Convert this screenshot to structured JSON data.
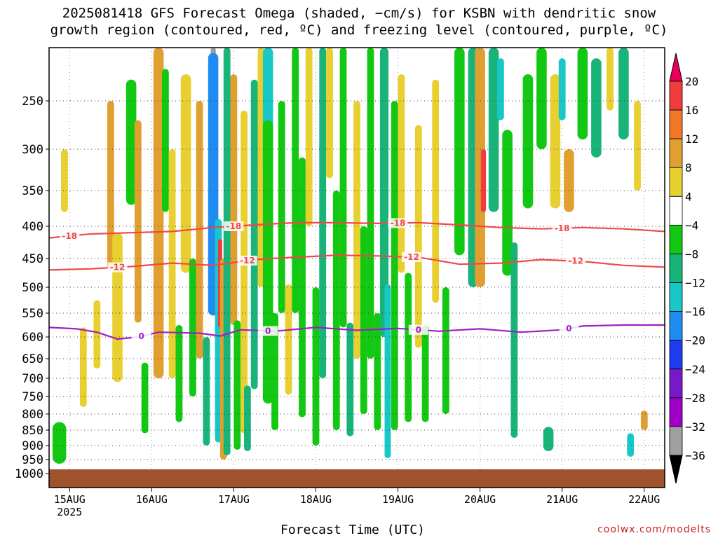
{
  "title_line1": "2025081418 GFS Forecast Omega (shaded, −cm/s) for KSBN with dendritic snow",
  "title_line2": "growth region (contoured, red, ºC) and freezing level (contoured, purple, ºC)",
  "credit": "coolwx.com/modelts",
  "chart_data": {
    "type": "heatmap",
    "xlabel": "Forecast Time (UTC)",
    "ylabel": "",
    "x_ticks": [
      {
        "label": "15AUG",
        "sub": "2025",
        "hour": 6
      },
      {
        "label": "16AUG",
        "sub": "",
        "hour": 30
      },
      {
        "label": "17AUG",
        "sub": "",
        "hour": 54
      },
      {
        "label": "18AUG",
        "sub": "",
        "hour": 78
      },
      {
        "label": "19AUG",
        "sub": "",
        "hour": 102
      },
      {
        "label": "20AUG",
        "sub": "",
        "hour": 126
      },
      {
        "label": "21AUG",
        "sub": "",
        "hour": 150
      },
      {
        "label": "22AUG",
        "sub": "",
        "hour": 174
      }
    ],
    "x_range_hours": [
      0,
      180
    ],
    "y_ticks": [
      250,
      300,
      350,
      400,
      450,
      500,
      550,
      600,
      650,
      700,
      750,
      800,
      850,
      900,
      950,
      1000
    ],
    "y_range": [
      200,
      1010
    ],
    "y_scale": "pressure",
    "grid": true,
    "colorbar": {
      "levels": [
        20,
        16,
        12,
        8,
        4,
        -4,
        -8,
        -12,
        -16,
        -20,
        -24,
        -28,
        -32,
        -36
      ],
      "colors": [
        "#e8005c",
        "#f03c3c",
        "#f07828",
        "#e0a030",
        "#e8d030",
        "#ffffff",
        "#12c812",
        "#18b47a",
        "#18c8c8",
        "#1e8cf0",
        "#1e3cf0",
        "#7818c8",
        "#a000c8",
        "#a0a0a0",
        "#000000"
      ],
      "labels": [
        "20",
        "16",
        "12",
        "8",
        "4",
        "−4",
        "−8",
        "−12",
        "−16",
        "−20",
        "−24",
        "−28",
        "−32",
        "−36"
      ]
    },
    "contours": [
      {
        "label": "-18",
        "color": "#f04848",
        "points": [
          [
            0,
            418
          ],
          [
            12,
            412
          ],
          [
            24,
            410
          ],
          [
            36,
            408
          ],
          [
            48,
            402
          ],
          [
            60,
            398
          ],
          [
            72,
            395
          ],
          [
            84,
            395
          ],
          [
            96,
            396
          ],
          [
            108,
            395
          ],
          [
            120,
            398
          ],
          [
            132,
            402
          ],
          [
            144,
            404
          ],
          [
            156,
            402
          ],
          [
            168,
            404
          ],
          [
            180,
            408
          ]
        ],
        "label_hours": [
          6,
          54,
          102,
          150
        ]
      },
      {
        "label": "-12",
        "color": "#f04848",
        "points": [
          [
            0,
            470
          ],
          [
            12,
            468
          ],
          [
            24,
            464
          ],
          [
            36,
            458
          ],
          [
            48,
            462
          ],
          [
            60,
            452
          ],
          [
            72,
            448
          ],
          [
            84,
            445
          ],
          [
            96,
            446
          ],
          [
            108,
            448
          ],
          [
            120,
            460
          ],
          [
            132,
            458
          ],
          [
            144,
            452
          ],
          [
            156,
            455
          ],
          [
            168,
            462
          ],
          [
            180,
            465
          ]
        ],
        "label_hours": [
          20,
          58,
          106,
          154
        ]
      },
      {
        "label": "0",
        "color": "#a020c0",
        "points": [
          [
            0,
            580
          ],
          [
            8,
            583
          ],
          [
            14,
            590
          ],
          [
            20,
            605
          ],
          [
            26,
            600
          ],
          [
            32,
            590
          ],
          [
            44,
            592
          ],
          [
            50,
            598
          ],
          [
            56,
            585
          ],
          [
            66,
            588
          ],
          [
            78,
            580
          ],
          [
            90,
            586
          ],
          [
            102,
            582
          ],
          [
            114,
            588
          ],
          [
            126,
            583
          ],
          [
            138,
            590
          ],
          [
            150,
            585
          ],
          [
            156,
            577
          ],
          [
            168,
            575
          ],
          [
            180,
            575
          ]
        ],
        "label_hours": [
          27,
          64,
          108,
          152
        ]
      }
    ],
    "omega_cells": [
      {
        "hour": 3,
        "p": 895,
        "v": -14,
        "w": 3,
        "h": 80
      },
      {
        "hour": 3,
        "p": 895,
        "v": -8,
        "w": 4,
        "h": 140
      },
      {
        "hour": 4.5,
        "p": 340,
        "v": 6,
        "w": 2,
        "h": 80
      },
      {
        "hour": 10,
        "p": 680,
        "v": 5,
        "w": 2,
        "h": 200
      },
      {
        "hour": 14,
        "p": 600,
        "v": 5,
        "w": 2,
        "h": 150
      },
      {
        "hour": 18,
        "p": 360,
        "v": 8,
        "w": 2,
        "h": 220
      },
      {
        "hour": 20,
        "p": 560,
        "v": 5,
        "w": 3,
        "h": 300
      },
      {
        "hour": 24,
        "p": 300,
        "v": -8,
        "w": 3,
        "h": 140
      },
      {
        "hour": 26,
        "p": 420,
        "v": 10,
        "w": 2,
        "h": 300
      },
      {
        "hour": 28,
        "p": 760,
        "v": -8,
        "w": 2,
        "h": 200
      },
      {
        "hour": 32,
        "p": 450,
        "v": 8,
        "w": 3,
        "h": 500
      },
      {
        "hour": 34,
        "p": 300,
        "v": -8,
        "w": 2,
        "h": 160
      },
      {
        "hour": 36,
        "p": 500,
        "v": 6,
        "w": 2,
        "h": 400
      },
      {
        "hour": 38,
        "p": 700,
        "v": -8,
        "w": 2,
        "h": 250
      },
      {
        "hour": 40,
        "p": 350,
        "v": 6,
        "w": 3,
        "h": 250
      },
      {
        "hour": 42,
        "p": 600,
        "v": -8,
        "w": 2,
        "h": 300
      },
      {
        "hour": 44,
        "p": 450,
        "v": 10,
        "w": 2,
        "h": 400
      },
      {
        "hour": 46,
        "p": 750,
        "v": -10,
        "w": 2,
        "h": 300
      },
      {
        "hour": 48,
        "p": 280,
        "v": -36,
        "w": 1.5,
        "h": 180
      },
      {
        "hour": 48,
        "p": 380,
        "v": -20,
        "w": 3,
        "h": 350
      },
      {
        "hour": 49.5,
        "p": 640,
        "v": -14,
        "w": 2,
        "h": 500
      },
      {
        "hour": 50,
        "p": 500,
        "v": 16,
        "w": 1.2,
        "h": 160
      },
      {
        "hour": 51,
        "p": 700,
        "v": 10,
        "w": 2,
        "h": 500
      },
      {
        "hour": 52,
        "p": 560,
        "v": -10,
        "w": 2,
        "h": 750
      },
      {
        "hour": 54,
        "p": 400,
        "v": 8,
        "w": 2,
        "h": 350
      },
      {
        "hour": 55,
        "p": 740,
        "v": -8,
        "w": 2,
        "h": 350
      },
      {
        "hour": 57,
        "p": 560,
        "v": 6,
        "w": 2,
        "h": 600
      },
      {
        "hour": 58,
        "p": 820,
        "v": -12,
        "w": 2,
        "h": 200
      },
      {
        "hour": 60,
        "p": 480,
        "v": -10,
        "w": 2,
        "h": 500
      },
      {
        "hour": 62,
        "p": 350,
        "v": 5,
        "w": 2,
        "h": 300
      },
      {
        "hour": 64,
        "p": 260,
        "v": -16,
        "w": 3,
        "h": 130
      },
      {
        "hour": 64,
        "p": 520,
        "v": -8,
        "w": 3,
        "h": 500
      },
      {
        "hour": 66,
        "p": 700,
        "v": -8,
        "w": 2,
        "h": 300
      },
      {
        "hour": 68,
        "p": 400,
        "v": -8,
        "w": 2,
        "h": 300
      },
      {
        "hour": 70,
        "p": 620,
        "v": 5,
        "w": 2,
        "h": 250
      },
      {
        "hour": 72,
        "p": 350,
        "v": -8,
        "w": 2,
        "h": 400
      },
      {
        "hour": 74,
        "p": 560,
        "v": -8,
        "w": 2,
        "h": 500
      },
      {
        "hour": 76,
        "p": 300,
        "v": 5,
        "w": 2,
        "h": 200
      },
      {
        "hour": 78,
        "p": 700,
        "v": -8,
        "w": 2,
        "h": 400
      },
      {
        "hour": 80,
        "p": 450,
        "v": -10,
        "w": 2,
        "h": 500
      },
      {
        "hour": 82,
        "p": 260,
        "v": 5,
        "w": 2,
        "h": 150
      },
      {
        "hour": 84,
        "p": 600,
        "v": -8,
        "w": 2,
        "h": 500
      },
      {
        "hour": 86,
        "p": 380,
        "v": -8,
        "w": 2,
        "h": 400
      },
      {
        "hour": 88,
        "p": 720,
        "v": -10,
        "w": 2,
        "h": 300
      },
      {
        "hour": 90,
        "p": 450,
        "v": 6,
        "w": 2,
        "h": 400
      },
      {
        "hour": 92,
        "p": 600,
        "v": -8,
        "w": 2,
        "h": 400
      },
      {
        "hour": 94,
        "p": 400,
        "v": -8,
        "w": 2,
        "h": 500
      },
      {
        "hour": 96,
        "p": 700,
        "v": -8,
        "w": 2,
        "h": 300
      },
      {
        "hour": 98,
        "p": 280,
        "v": -34,
        "w": 1.6,
        "h": 100
      },
      {
        "hour": 98,
        "p": 400,
        "v": -12,
        "w": 2.5,
        "h": 400
      },
      {
        "hour": 99,
        "p": 720,
        "v": -14,
        "w": 1.8,
        "h": 450
      },
      {
        "hour": 101,
        "p": 550,
        "v": -8,
        "w": 2,
        "h": 600
      },
      {
        "hour": 103,
        "p": 350,
        "v": 6,
        "w": 2,
        "h": 250
      },
      {
        "hour": 105,
        "p": 650,
        "v": -8,
        "w": 2,
        "h": 350
      },
      {
        "hour": 108,
        "p": 450,
        "v": 5,
        "w": 2,
        "h": 350
      },
      {
        "hour": 110,
        "p": 700,
        "v": -8,
        "w": 2,
        "h": 250
      },
      {
        "hour": 113,
        "p": 380,
        "v": 5,
        "w": 2,
        "h": 300
      },
      {
        "hour": 116,
        "p": 650,
        "v": -8,
        "w": 2,
        "h": 300
      },
      {
        "hour": 120,
        "p": 320,
        "v": -8,
        "w": 3,
        "h": 250
      },
      {
        "hour": 124,
        "p": 350,
        "v": -12,
        "w": 3,
        "h": 300
      },
      {
        "hour": 126,
        "p": 300,
        "v": 10,
        "w": 3,
        "h": 400
      },
      {
        "hour": 127,
        "p": 340,
        "v": 16,
        "w": 1.5,
        "h": 80
      },
      {
        "hour": 130,
        "p": 280,
        "v": -12,
        "w": 3,
        "h": 200
      },
      {
        "hour": 132,
        "p": 240,
        "v": -16,
        "w": 2,
        "h": 60
      },
      {
        "hour": 134,
        "p": 380,
        "v": -8,
        "w": 3,
        "h": 200
      },
      {
        "hour": 136,
        "p": 650,
        "v": -12,
        "w": 2,
        "h": 450
      },
      {
        "hour": 140,
        "p": 300,
        "v": -8,
        "w": 3,
        "h": 150
      },
      {
        "hour": 144,
        "p": 250,
        "v": -8,
        "w": 3,
        "h": 100
      },
      {
        "hour": 146,
        "p": 880,
        "v": -12,
        "w": 3,
        "h": 80
      },
      {
        "hour": 148,
        "p": 300,
        "v": 6,
        "w": 3,
        "h": 150
      },
      {
        "hour": 150,
        "p": 240,
        "v": -16,
        "w": 2,
        "h": 60
      },
      {
        "hour": 152,
        "p": 340,
        "v": 8,
        "w": 3,
        "h": 80
      },
      {
        "hour": 156,
        "p": 240,
        "v": -8,
        "w": 3,
        "h": 100
      },
      {
        "hour": 160,
        "p": 260,
        "v": -12,
        "w": 3,
        "h": 100
      },
      {
        "hour": 164,
        "p": 220,
        "v": 6,
        "w": 2,
        "h": 80
      },
      {
        "hour": 168,
        "p": 240,
        "v": -12,
        "w": 3,
        "h": 100
      },
      {
        "hour": 170,
        "p": 900,
        "v": -14,
        "w": 2,
        "h": 80
      },
      {
        "hour": 172,
        "p": 300,
        "v": 5,
        "w": 2,
        "h": 100
      },
      {
        "hour": 174,
        "p": 820,
        "v": 8,
        "w": 2,
        "h": 60
      }
    ],
    "surface_color": "#a0522d"
  }
}
